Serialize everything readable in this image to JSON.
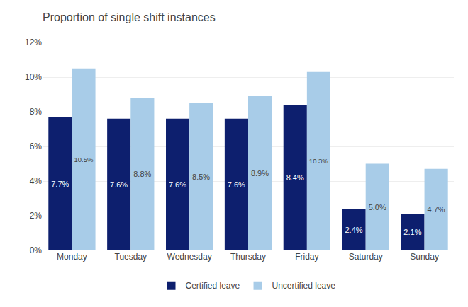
{
  "chart_data": {
    "type": "bar",
    "title": "Proportion of single shift instances",
    "categories": [
      "Monday",
      "Tuesday",
      "Wednesday",
      "Thursday",
      "Friday",
      "Saturday",
      "Sunday"
    ],
    "series": [
      {
        "name": "Certified leave",
        "color": "#0d1f6e",
        "values": [
          7.7,
          7.6,
          7.6,
          7.6,
          8.4,
          2.4,
          2.1
        ],
        "value_labels": [
          "7.7%",
          "7.6%",
          "7.6%",
          "7.6%",
          "8.4%",
          "2.4%",
          "2.1%"
        ]
      },
      {
        "name": "Uncertified leave",
        "color": "#a8cce8",
        "values": [
          10.5,
          8.8,
          8.5,
          8.9,
          10.3,
          5.0,
          4.7
        ],
        "value_labels": [
          "10.5%",
          "8.8%",
          "8.5%",
          "8.9%",
          "10.3%",
          "5.0%",
          "4.7%"
        ]
      }
    ],
    "ylim": [
      0,
      12
    ],
    "yticks": [
      {
        "value": 0,
        "label": "0%"
      },
      {
        "value": 2,
        "label": "2%"
      },
      {
        "value": 4,
        "label": "4%"
      },
      {
        "value": 6,
        "label": "6%"
      },
      {
        "value": 8,
        "label": "8%"
      },
      {
        "value": 10,
        "label": "10%"
      },
      {
        "value": 12,
        "label": "12%"
      }
    ],
    "grid": true,
    "legend": "bottom",
    "data_labels": true
  }
}
